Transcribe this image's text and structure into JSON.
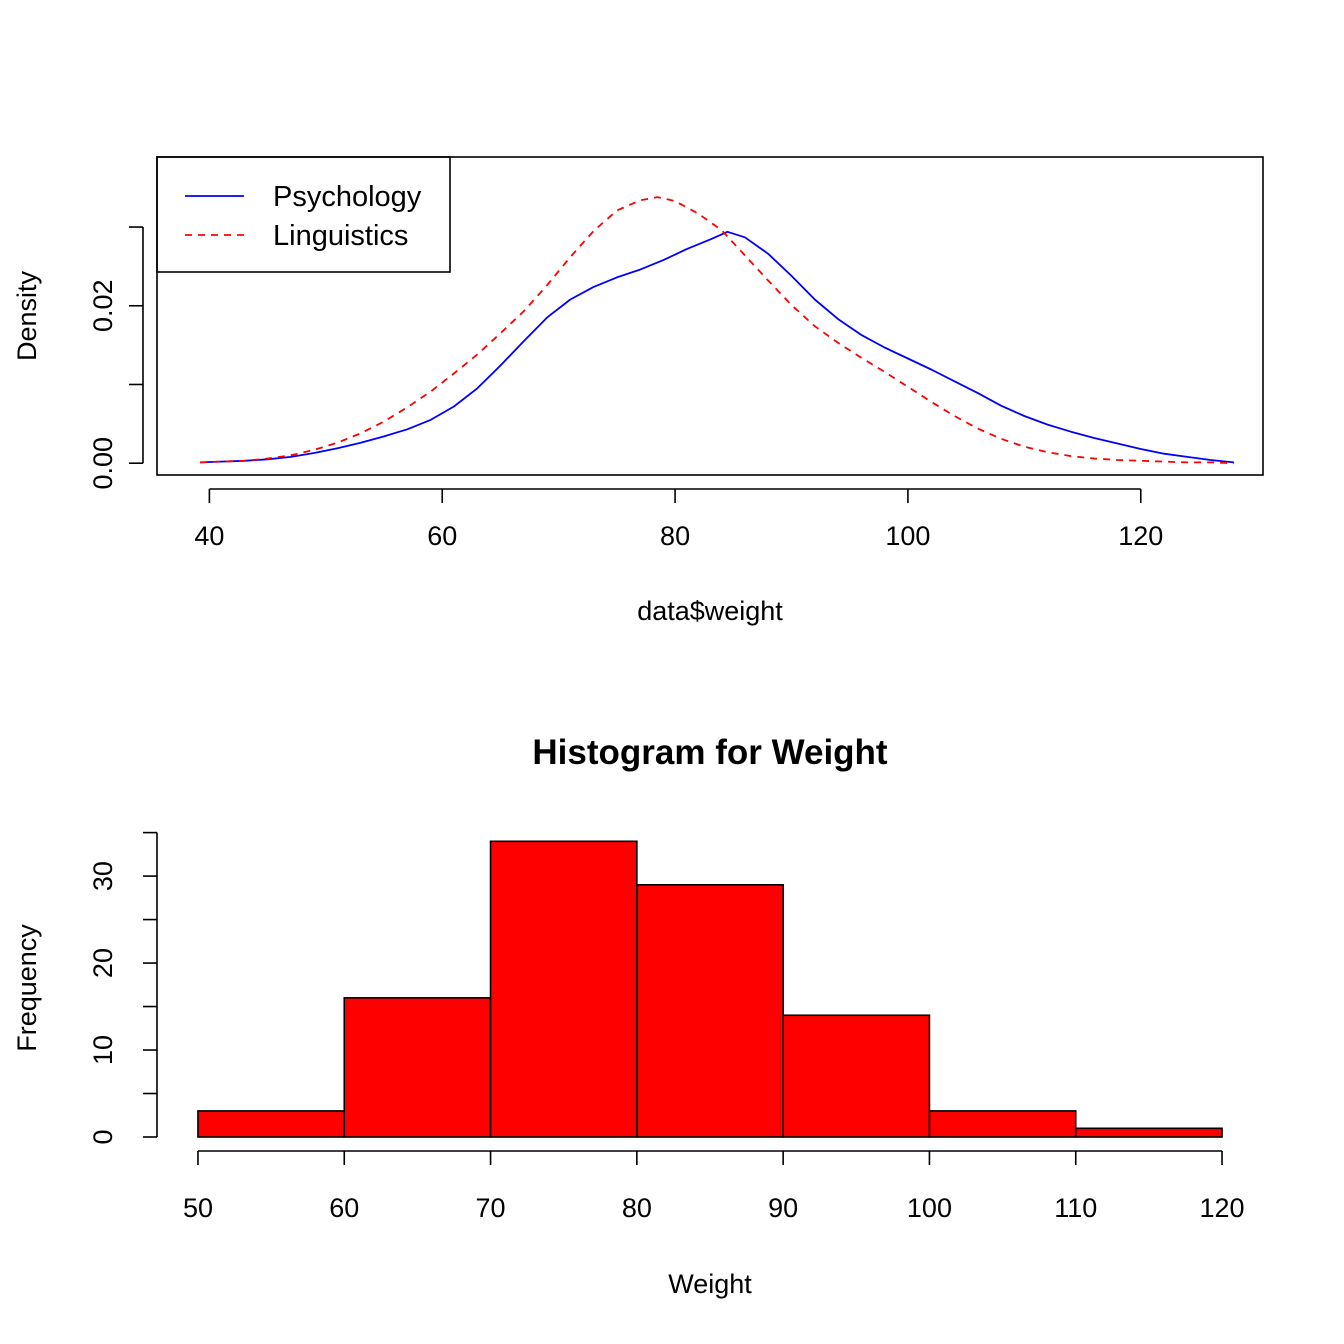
{
  "chart_data": [
    {
      "type": "line",
      "title": "",
      "xlabel": "data$weight",
      "ylabel": "Density",
      "xlim": [
        35.5,
        130.5
      ],
      "ylim": [
        -0.0015,
        0.0389
      ],
      "xticks": [
        40,
        60,
        80,
        100,
        120
      ],
      "yticks": [
        0,
        0.01,
        0.02,
        0.03
      ],
      "ytick_labels": [
        "0.00",
        "",
        "0.02",
        ""
      ],
      "grid": false,
      "legend": {
        "position": "top-left",
        "entries": [
          "Psychology",
          "Linguistics"
        ]
      },
      "series": [
        {
          "name": "Psychology",
          "color": "#0000ff",
          "style": "solid",
          "x": [
            39.2,
            41,
            43,
            45,
            47,
            49,
            51,
            53,
            55,
            57,
            59,
            61,
            63,
            65,
            67,
            69,
            71,
            73,
            75,
            77,
            79,
            81,
            83,
            84.5,
            86,
            88,
            90,
            92,
            94,
            96,
            98,
            100,
            102,
            104,
            106,
            108,
            110,
            112,
            114,
            116,
            118,
            120,
            122,
            124,
            126,
            128
          ],
          "values": [
            0.0001,
            0.0002,
            0.0003,
            0.0005,
            0.0008,
            0.0013,
            0.0019,
            0.0026,
            0.0034,
            0.0043,
            0.0055,
            0.0072,
            0.0095,
            0.0124,
            0.0155,
            0.0185,
            0.0208,
            0.0224,
            0.0236,
            0.0246,
            0.0258,
            0.0272,
            0.0284,
            0.0294,
            0.0287,
            0.0266,
            0.0238,
            0.0208,
            0.0183,
            0.0163,
            0.0147,
            0.0133,
            0.0119,
            0.0104,
            0.0089,
            0.0073,
            0.006,
            0.0049,
            0.004,
            0.0032,
            0.0025,
            0.0018,
            0.0012,
            0.0008,
            0.0004,
            0.0001
          ]
        },
        {
          "name": "Linguistics",
          "color": "#ff0000",
          "style": "dashed",
          "x": [
            39.2,
            41,
            43,
            45,
            47,
            49,
            51,
            53,
            55,
            57,
            59,
            61,
            63,
            65,
            67,
            69,
            71,
            73,
            75,
            77,
            78.5,
            80,
            82,
            84,
            86,
            88,
            90,
            92,
            94,
            96,
            98,
            100,
            102,
            104,
            106,
            108,
            110,
            112,
            114,
            116,
            118,
            120,
            122,
            124,
            126,
            128
          ],
          "values": [
            0.0001,
            0.0002,
            0.0003,
            0.0006,
            0.001,
            0.0017,
            0.0026,
            0.0038,
            0.0053,
            0.0071,
            0.0091,
            0.0114,
            0.0138,
            0.0165,
            0.0193,
            0.0226,
            0.0262,
            0.0295,
            0.0321,
            0.0334,
            0.0338,
            0.0333,
            0.0317,
            0.0296,
            0.0264,
            0.0232,
            0.0201,
            0.0174,
            0.0153,
            0.0134,
            0.0116,
            0.0097,
            0.0078,
            0.006,
            0.0044,
            0.0031,
            0.0021,
            0.0014,
            0.0009,
            0.0006,
            0.0004,
            0.0003,
            0.0002,
            0.0001,
            0.0001,
            0.0
          ]
        }
      ]
    },
    {
      "type": "bar",
      "title": "Histogram for Weight",
      "xlabel": "Weight",
      "ylabel": "Frequency",
      "bins": [
        [
          50,
          60
        ],
        [
          60,
          70
        ],
        [
          70,
          80
        ],
        [
          80,
          90
        ],
        [
          90,
          100
        ],
        [
          100,
          110
        ],
        [
          110,
          120
        ]
      ],
      "values": [
        3,
        16,
        34,
        29,
        14,
        3,
        1
      ],
      "fill_color": "#ff0000",
      "xlim": [
        47.2,
        122.8
      ],
      "ylim": [
        0,
        35.3
      ],
      "xticks": [
        50,
        60,
        70,
        80,
        90,
        100,
        110,
        120
      ],
      "yticks": [
        0,
        5,
        10,
        15,
        20,
        25,
        30,
        35
      ],
      "ytick_labels": [
        "0",
        "",
        "10",
        "",
        "20",
        "",
        "30",
        ""
      ],
      "grid": false
    }
  ]
}
